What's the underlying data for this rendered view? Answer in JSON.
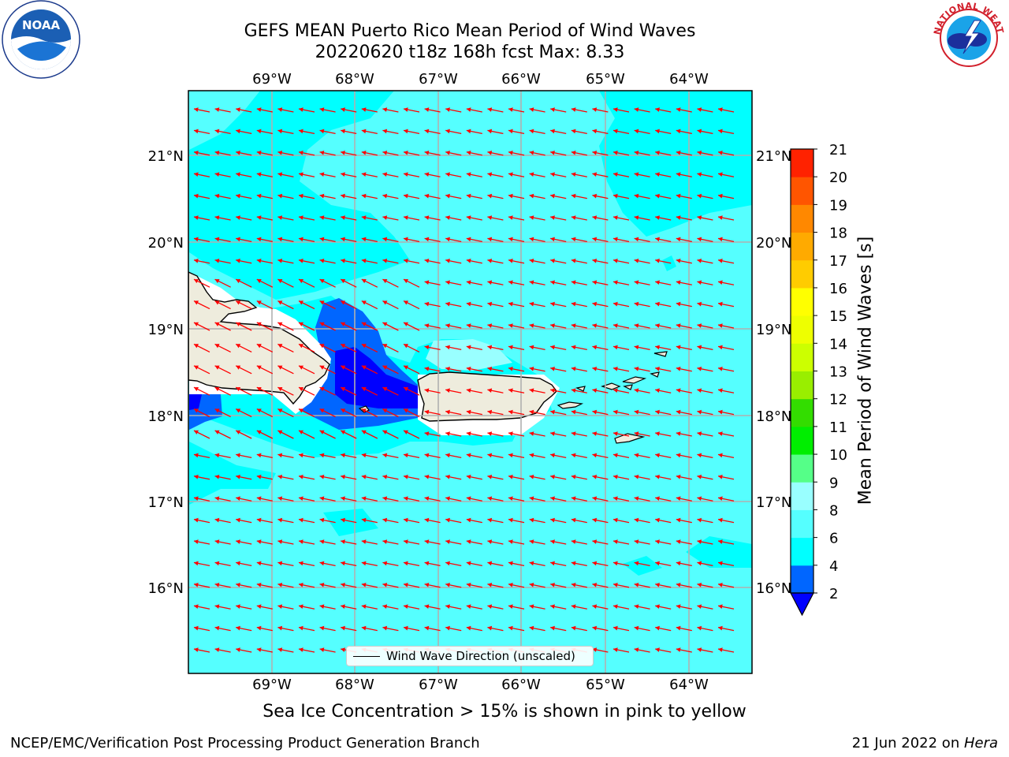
{
  "header": {
    "title_line1": "GEFS MEAN Puerto Rico Mean Period of Wind Waves",
    "title_line2": "20220620 t18z 168h fcst   Max: 8.33"
  },
  "logos": {
    "noara": {
      "text": "NOAA"
    },
    "nws": {
      "text": "NATIONAL WEATHER SERVICE"
    }
  },
  "map": {
    "lon_labels": [
      "69°W",
      "68°W",
      "67°W",
      "66°W",
      "65°W",
      "64°W"
    ],
    "lat_labels": [
      "21°N",
      "20°N",
      "19°N",
      "18°N",
      "17°N",
      "16°N"
    ],
    "legend_label": "Wind Wave Direction (unscaled)",
    "arrow_color": "#ff0000",
    "land_color": "#eeecdd",
    "ocean_base_color": "#55ffff"
  },
  "colorbar": {
    "label": "Mean Period of Wind Waves [s]",
    "ticks": [
      "2",
      "4",
      "6",
      "8",
      "9",
      "10",
      "11",
      "12",
      "13",
      "14",
      "15",
      "16",
      "17",
      "18",
      "19",
      "20",
      "21"
    ],
    "colors": [
      "#0066ff",
      "#00ffff",
      "#55ffff",
      "#99ffff",
      "#55ff88",
      "#00ee00",
      "#33dd00",
      "#99ee00",
      "#ccff00",
      "#eeff00",
      "#ffff00",
      "#ffcc00",
      "#ffaa00",
      "#ff8800",
      "#ff5500",
      "#ff2200"
    ],
    "under_color": "#0000ff",
    "over_color": "#ff0000"
  },
  "caption": "Sea Ice Concentration > 15% is shown in pink to yellow",
  "footer": {
    "left": "NCEP/EMC/Verification Post Processing Product Generation Branch",
    "date": "21 Jun 2022 on ",
    "machine": "Hera"
  }
}
